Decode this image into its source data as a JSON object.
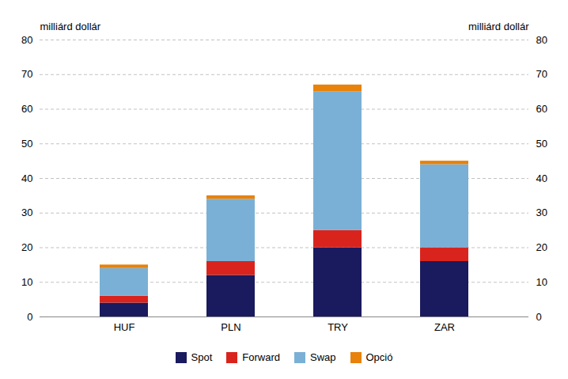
{
  "chart_data": {
    "type": "bar",
    "stacked": true,
    "categories": [
      "HUF",
      "PLN",
      "TRY",
      "ZAR"
    ],
    "series": [
      {
        "name": "Spot",
        "color": "#1a1a5e",
        "values": [
          4,
          12,
          20,
          16
        ]
      },
      {
        "name": "Forward",
        "color": "#d9241e",
        "values": [
          2,
          4,
          5,
          4
        ]
      },
      {
        "name": "Swap",
        "color": "#7ab0d5",
        "values": [
          8,
          18,
          40,
          24
        ]
      },
      {
        "name": "Opció",
        "color": "#e8820a",
        "values": [
          1,
          1,
          2,
          1
        ]
      }
    ],
    "ylabel": "milliárd dollár",
    "y2label": "milliárd dollár",
    "ylim": [
      0,
      80
    ],
    "yticks": [
      0,
      10,
      20,
      30,
      40,
      50,
      60,
      70,
      80
    ],
    "y2lim": [
      0,
      80
    ],
    "y2ticks": [
      0,
      10,
      20,
      30,
      40,
      50,
      60,
      70,
      80
    ],
    "grid": true,
    "legend": "bottom"
  }
}
